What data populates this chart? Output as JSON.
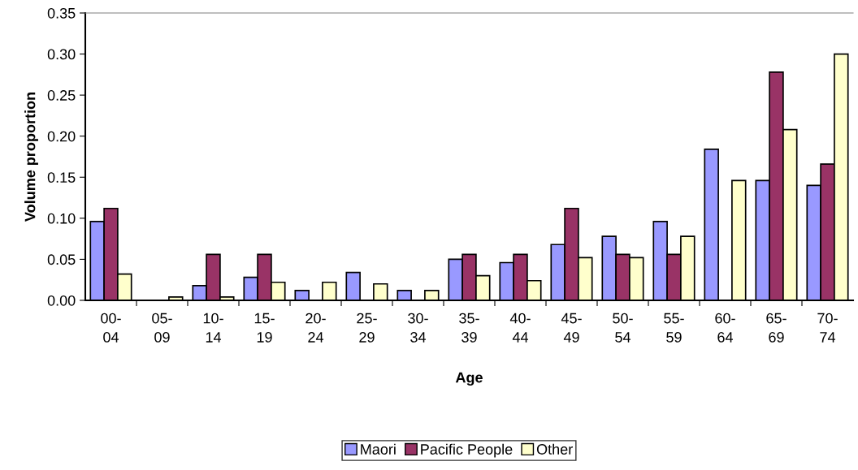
{
  "chart_data": {
    "type": "bar",
    "xlabel": "Age",
    "ylabel": "Volume proportion",
    "categories": [
      "00-\n04",
      "05-\n09",
      "10-\n14",
      "15-\n19",
      "20-\n24",
      "25-\n29",
      "30-\n34",
      "35-\n39",
      "40-\n44",
      "45-\n49",
      "50-\n54",
      "55-\n59",
      "60-\n64",
      "65-\n69",
      "70-\n74"
    ],
    "series": [
      {
        "name": "Maori",
        "color": "#9999ff",
        "values": [
          0.096,
          null,
          0.018,
          0.028,
          0.012,
          0.034,
          0.012,
          0.05,
          0.046,
          0.068,
          0.078,
          0.096,
          0.184,
          0.146,
          0.14
        ]
      },
      {
        "name": "Pacific People",
        "color": "#993366",
        "values": [
          0.112,
          null,
          0.056,
          0.056,
          null,
          null,
          null,
          0.056,
          0.056,
          0.112,
          0.056,
          0.056,
          null,
          0.278,
          0.166
        ]
      },
      {
        "name": "Other",
        "color": "#ffffcc",
        "values": [
          0.032,
          0.004,
          0.004,
          0.022,
          0.022,
          0.02,
          0.012,
          0.03,
          0.024,
          0.052,
          0.052,
          0.078,
          0.146,
          0.208,
          0.3
        ]
      }
    ],
    "ylim": [
      0,
      0.35
    ],
    "yticks": [
      {
        "value": 0,
        "label": "0.00"
      },
      {
        "value": 0.05,
        "label": "0.05"
      },
      {
        "value": 0.1,
        "label": "0.10"
      },
      {
        "value": 0.15,
        "label": "0.15"
      },
      {
        "value": 0.2,
        "label": "0.20"
      },
      {
        "value": 0.25,
        "label": "0.25"
      },
      {
        "value": 0.3,
        "label": "0.30"
      },
      {
        "value": 0.35,
        "label": "0.35"
      }
    ],
    "grid": false,
    "legend": "bottom"
  }
}
